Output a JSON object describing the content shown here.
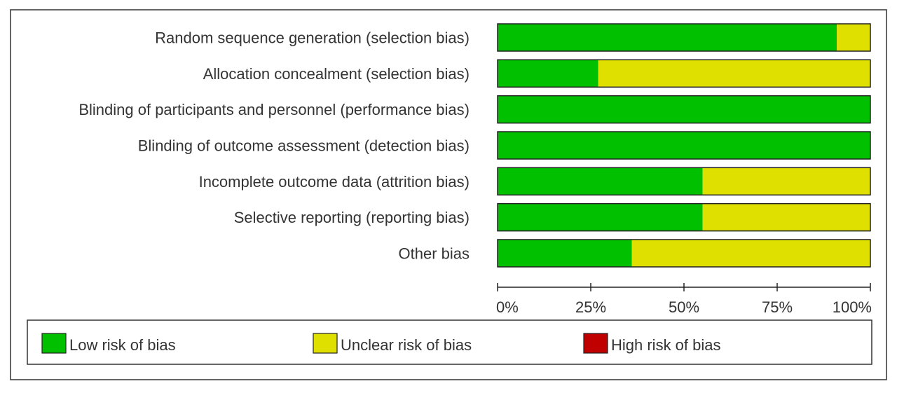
{
  "chart_data": {
    "type": "bar",
    "stacked": true,
    "orientation": "horizontal",
    "categories": [
      "Random sequence generation (selection bias)",
      "Allocation concealment (selection bias)",
      "Blinding of participants and personnel (performance bias)",
      "Blinding of outcome assessment (detection bias)",
      "Incomplete outcome data (attrition bias)",
      "Selective reporting (reporting bias)",
      "Other bias"
    ],
    "series": [
      {
        "name": "Low risk of bias",
        "color": "#00c000",
        "values": [
          91,
          27,
          100,
          100,
          55,
          55,
          36
        ]
      },
      {
        "name": "Unclear risk of bias",
        "color": "#e0e000",
        "values": [
          9,
          73,
          0,
          0,
          45,
          45,
          64
        ]
      },
      {
        "name": "High risk of bias",
        "color": "#c00000",
        "values": [
          0,
          0,
          0,
          0,
          0,
          0,
          0
        ]
      }
    ],
    "xlim": [
      0,
      100
    ],
    "xticks": [
      "0%",
      "25%",
      "50%",
      "75%",
      "100%"
    ],
    "legend_position": "bottom",
    "grid": false
  }
}
